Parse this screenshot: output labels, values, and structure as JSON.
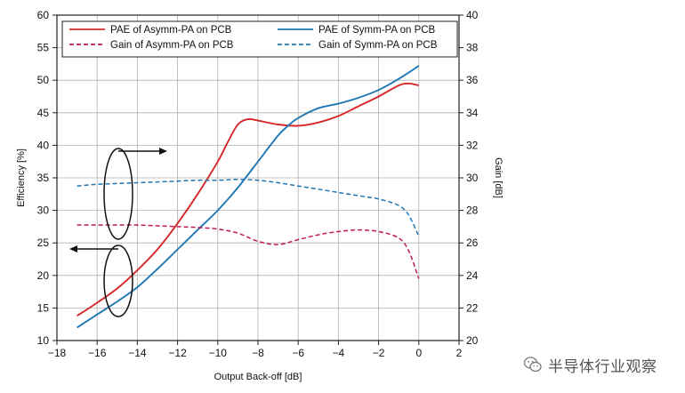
{
  "chart_data": {
    "type": "line",
    "xlabel": "Output Back-off [dB]",
    "ylabel_left": "Efficiency [%]",
    "ylabel_right": "Gain [dB]",
    "xlim": [
      -18,
      2
    ],
    "ylim_left": [
      10,
      60
    ],
    "ylim_right": [
      20,
      40
    ],
    "x_ticks": [
      -18,
      -16,
      -14,
      -12,
      -10,
      -8,
      -6,
      -4,
      -2,
      0,
      2
    ],
    "y_ticks_left": [
      10,
      15,
      20,
      25,
      30,
      35,
      40,
      45,
      50,
      55,
      60
    ],
    "y_ticks_right": [
      20,
      22,
      24,
      26,
      28,
      30,
      32,
      34,
      36,
      38,
      40
    ],
    "grid": true,
    "legend_position": "top",
    "series": [
      {
        "name": "PAE of Asymm-PA on PCB",
        "axis": "left",
        "color": "#d62728",
        "dash": "solid",
        "x": [
          -17,
          -16,
          -15,
          -14,
          -13,
          -12,
          -11,
          -10,
          -9.5,
          -9,
          -8.5,
          -8,
          -7,
          -6,
          -5,
          -4,
          -3,
          -2,
          -1,
          -0.5,
          0
        ],
        "y": [
          13.8,
          15.8,
          18,
          20.8,
          24,
          28,
          32.5,
          37.5,
          40.5,
          43.2,
          44.0,
          43.8,
          43.2,
          43.0,
          43.5,
          44.5,
          46,
          47.5,
          49.2,
          49.5,
          49.2
        ]
      },
      {
        "name": "PAE of Symm-PA on PCB",
        "axis": "left",
        "color": "#1f77b4",
        "dash": "solid",
        "x": [
          -17,
          -16,
          -15,
          -14,
          -13,
          -12,
          -11,
          -10,
          -9,
          -8,
          -7,
          -6.5,
          -6,
          -5,
          -4,
          -3,
          -2,
          -1,
          0
        ],
        "y": [
          12,
          14,
          16,
          18.2,
          21,
          24,
          27,
          30,
          33.5,
          37.5,
          41.5,
          43,
          44.2,
          45.7,
          46.4,
          47.3,
          48.5,
          50.2,
          52.2
        ]
      },
      {
        "name": "Gain of Asymm-PA on PCB",
        "axis": "right",
        "color": "#c2185b",
        "dash": "dashed",
        "x": [
          -17,
          -16,
          -15,
          -14,
          -13,
          -12,
          -11,
          -10,
          -9,
          -8,
          -7,
          -6,
          -5,
          -4,
          -3,
          -2,
          -1,
          -0.5,
          0
        ],
        "y": [
          27.1,
          27.1,
          27.1,
          27.1,
          27.05,
          27.0,
          26.95,
          26.85,
          26.6,
          26.1,
          25.9,
          26.2,
          26.5,
          26.7,
          26.8,
          26.7,
          26.3,
          25.5,
          23.8
        ]
      },
      {
        "name": "Gain of Symm-PA on PCB",
        "axis": "right",
        "color": "#1f77b4",
        "dash": "dashed",
        "x": [
          -17,
          -16,
          -15,
          -14,
          -13,
          -12,
          -11,
          -10,
          -9,
          -8,
          -7,
          -6,
          -5,
          -4,
          -3,
          -2,
          -1,
          -0.5,
          0
        ],
        "y": [
          29.5,
          29.6,
          29.65,
          29.7,
          29.75,
          29.8,
          29.85,
          29.85,
          29.9,
          29.85,
          29.7,
          29.5,
          29.3,
          29.1,
          28.9,
          28.7,
          28.3,
          27.7,
          26.4
        ]
      }
    ]
  },
  "watermark": {
    "text": "半导体行业观察"
  },
  "colors": {
    "asymm_pae": "#d62728",
    "symm_pae": "#1f77b4",
    "asymm_gain": "#c2185b",
    "symm_gain": "#1f77b4",
    "grid": "#b0b0b0"
  }
}
